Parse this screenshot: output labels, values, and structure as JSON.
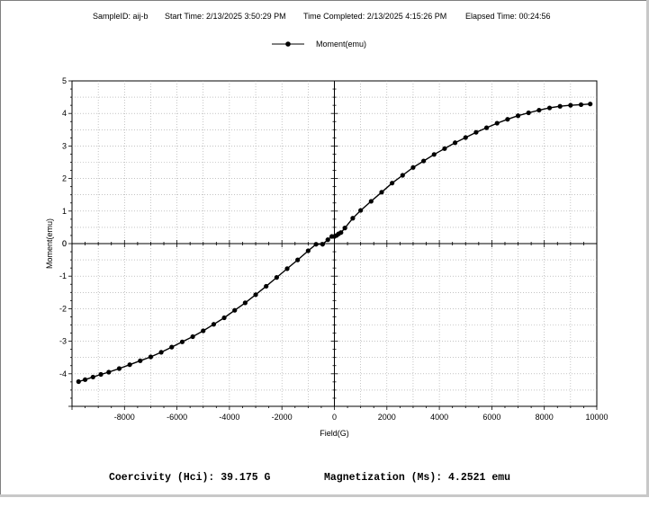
{
  "header": {
    "sample_id": "SampleID: aij-b",
    "start_time": "Start Time: 2/13/2025 3:50:29 PM",
    "time_completed": "Time Completed: 2/13/2025 4:15:26 PM",
    "elapsed_time": "Elapsed Time:  00:24:56"
  },
  "legend": {
    "series_label": "Moment(emu)"
  },
  "footer": {
    "coercivity": "Coercivity (Hci): 39.175 G",
    "magnetization": "Magnetization (Ms): 4.2521 emu"
  },
  "colors": {
    "series": "#000000",
    "grid": "#a0a0a0",
    "axis": "#000000"
  },
  "chart_data": {
    "type": "line",
    "xlabel": "Field(G)",
    "ylabel": "Moment(emu)",
    "xlim": [
      -10000,
      10000
    ],
    "ylim": [
      -5,
      5
    ],
    "x_ticks": [
      -8000,
      -6000,
      -4000,
      -2000,
      0,
      2000,
      4000,
      6000,
      8000,
      10000
    ],
    "y_ticks": [
      -4,
      -3,
      -2,
      -1,
      0,
      1,
      2,
      3,
      4,
      5
    ],
    "grid": true,
    "legend_position": "top-center",
    "series": [
      {
        "name": "Moment(emu)",
        "marker": "circle",
        "x": [
          -9750,
          -9500,
          -9200,
          -8900,
          -8600,
          -8200,
          -7800,
          -7400,
          -7000,
          -6600,
          -6200,
          -5800,
          -5400,
          -5000,
          -4600,
          -4200,
          -3800,
          -3400,
          -3000,
          -2600,
          -2200,
          -1800,
          -1400,
          -1000,
          -700,
          -450,
          -250,
          -100,
          0,
          80,
          160,
          250,
          400,
          700,
          1000,
          1400,
          1800,
          2200,
          2600,
          3000,
          3400,
          3800,
          4200,
          4600,
          5000,
          5400,
          5800,
          6200,
          6600,
          7000,
          7400,
          7800,
          8200,
          8600,
          9000,
          9400,
          9750
        ],
        "y": [
          -4.24,
          -4.18,
          -4.1,
          -4.02,
          -3.95,
          -3.84,
          -3.72,
          -3.6,
          -3.48,
          -3.34,
          -3.18,
          -3.02,
          -2.86,
          -2.68,
          -2.48,
          -2.28,
          -2.05,
          -1.82,
          -1.57,
          -1.31,
          -1.04,
          -0.77,
          -0.5,
          -0.22,
          -0.02,
          -0.02,
          0.12,
          0.22,
          0.22,
          0.25,
          0.3,
          0.34,
          0.48,
          0.78,
          1.02,
          1.3,
          1.58,
          1.86,
          2.1,
          2.34,
          2.54,
          2.74,
          2.92,
          3.1,
          3.26,
          3.42,
          3.56,
          3.7,
          3.82,
          3.93,
          4.02,
          4.1,
          4.17,
          4.22,
          4.25,
          4.27,
          4.29
        ]
      }
    ]
  }
}
